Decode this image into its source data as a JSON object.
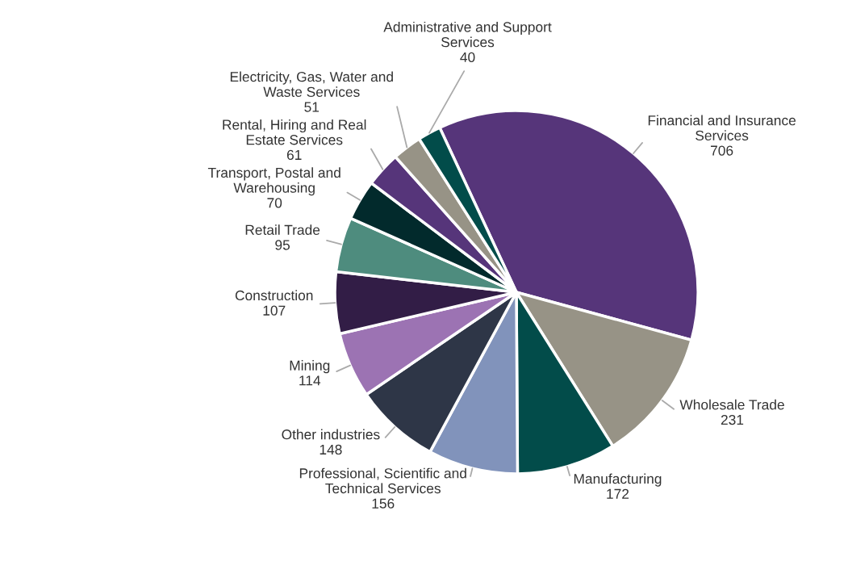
{
  "chart_data": {
    "type": "pie",
    "categories": [
      "Financial and Insurance Services",
      "Wholesale Trade",
      "Manufacturing",
      "Professional, Scientific and Technical Services",
      "Other industries",
      "Mining",
      "Construction",
      "Retail Trade",
      "Transport, Postal and Warehousing",
      "Rental, Hiring and Real Estate Services",
      "Electricity, Gas, Water and Waste Services",
      "Administrative and Support Services"
    ],
    "values": [
      706,
      231,
      172,
      156,
      148,
      114,
      107,
      95,
      70,
      61,
      51,
      40
    ],
    "colors": [
      "#56357a",
      "#979386",
      "#024c4a",
      "#8193bb",
      "#2e3647",
      "#9c73b3",
      "#321d46",
      "#4e8c7e",
      "#022a2c",
      "#56357a",
      "#979386",
      "#024c4a"
    ],
    "data_labels": true
  }
}
